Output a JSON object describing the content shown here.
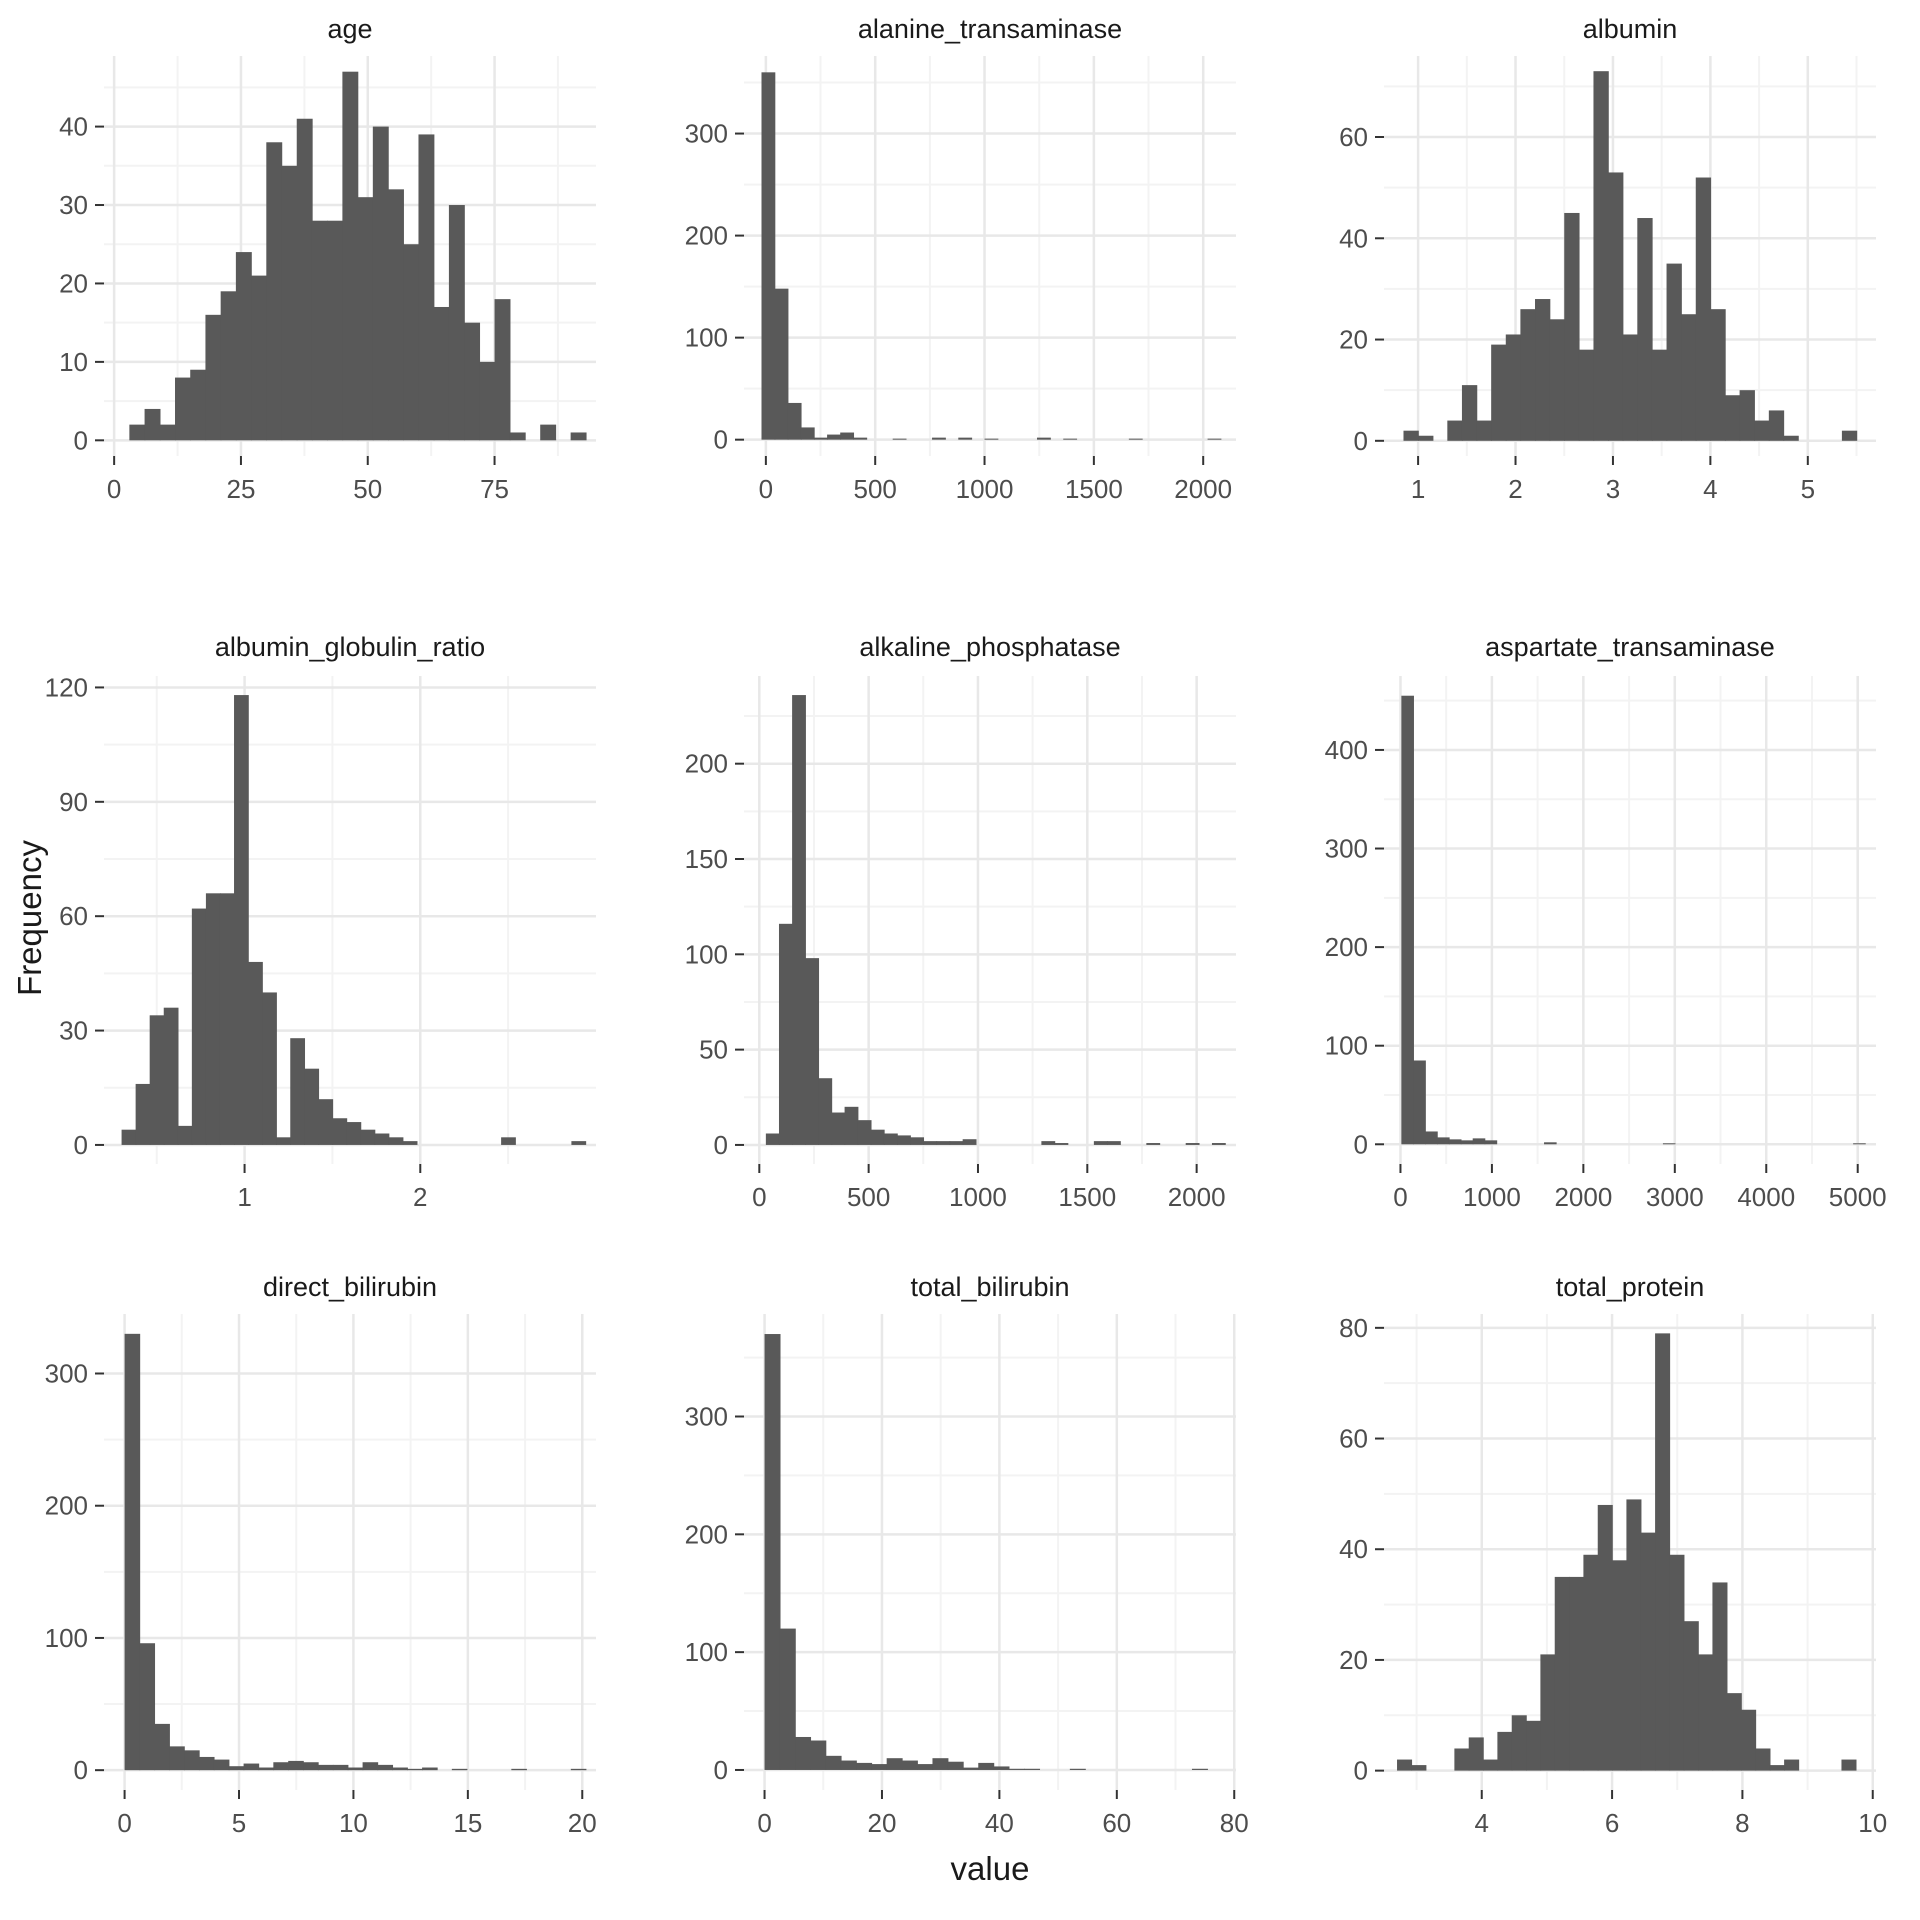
{
  "figure": {
    "ylabel": "Frequency",
    "xlabel": "value",
    "colors": {
      "bar": "#595959",
      "grid_major": "#e8e8e8",
      "grid_minor": "#f3f3f3",
      "tick_text": "#4d4d4d",
      "title_text": "#1a1a1a",
      "axis_tick": "#333333",
      "background": "#ffffff"
    }
  },
  "chart_data": [
    {
      "type": "histogram",
      "title": "age",
      "bin_start": 3,
      "bin_width": 3,
      "counts": [
        2,
        4,
        2,
        8,
        9,
        16,
        19,
        24,
        21,
        38,
        35,
        41,
        28,
        28,
        47,
        31,
        40,
        32,
        25,
        39,
        17,
        30,
        15,
        10,
        18,
        1,
        0,
        2,
        0,
        1
      ],
      "xticks": [
        0,
        25,
        50,
        75
      ],
      "yticks": [
        0,
        10,
        20,
        30,
        40
      ],
      "xlim": [
        -2,
        95
      ],
      "ylim": [
        -2,
        49
      ],
      "grid": true
    },
    {
      "type": "histogram",
      "title": "alanine_transaminase",
      "bin_start": -20,
      "bin_width": 60,
      "counts": [
        360,
        148,
        36,
        12,
        2,
        5,
        7,
        2,
        0,
        0,
        1,
        0,
        0,
        2,
        0,
        2,
        0,
        1,
        0,
        0,
        0,
        2,
        0,
        1,
        0,
        0,
        0,
        0,
        1,
        0,
        0,
        0,
        0,
        0,
        1
      ],
      "xticks": [
        0,
        500,
        1000,
        1500,
        2000
      ],
      "yticks": [
        0,
        100,
        200,
        300
      ],
      "xlim": [
        -100,
        2150
      ],
      "ylim": [
        -16,
        376
      ],
      "grid": true
    },
    {
      "type": "histogram",
      "title": "albumin",
      "bin_start": 0.85,
      "bin_width": 0.15,
      "counts": [
        2,
        1,
        0,
        4,
        11,
        4,
        19,
        21,
        26,
        28,
        24,
        45,
        18,
        73,
        53,
        21,
        44,
        18,
        35,
        25,
        52,
        26,
        9,
        10,
        4,
        6,
        1,
        0,
        0,
        0,
        2
      ],
      "xticks": [
        1,
        2,
        3,
        4,
        5
      ],
      "yticks": [
        0,
        20,
        40,
        60
      ],
      "xlim": [
        0.65,
        5.7
      ],
      "ylim": [
        -3,
        76
      ],
      "grid": true
    },
    {
      "type": "histogram",
      "title": "albumin_globulin_ratio",
      "bin_start": 0.3,
      "bin_width": 0.08,
      "counts": [
        4,
        16,
        34,
        36,
        5,
        62,
        66,
        66,
        118,
        48,
        40,
        2,
        28,
        20,
        12,
        7,
        6,
        4,
        3,
        2,
        1,
        0,
        0,
        0,
        0,
        0,
        0,
        2,
        0,
        0,
        0,
        0,
        1
      ],
      "xticks": [
        1,
        2
      ],
      "yticks": [
        0,
        30,
        60,
        90,
        120
      ],
      "xlim": [
        0.2,
        3.0
      ],
      "ylim": [
        -5,
        123
      ],
      "grid": true
    },
    {
      "type": "histogram",
      "title": "alkaline_phosphatase",
      "bin_start": 30,
      "bin_width": 60,
      "counts": [
        6,
        116,
        236,
        98,
        35,
        17,
        20,
        13,
        8,
        6,
        5,
        4,
        2,
        2,
        2,
        3,
        0,
        0,
        0,
        0,
        0,
        2,
        1,
        0,
        0,
        2,
        2,
        0,
        0,
        1,
        0,
        0,
        1,
        0,
        1
      ],
      "xticks": [
        0,
        500,
        1000,
        1500,
        2000
      ],
      "yticks": [
        0,
        50,
        100,
        150,
        200
      ],
      "xlim": [
        -70,
        2180
      ],
      "ylim": [
        -10,
        246
      ],
      "grid": true
    },
    {
      "type": "histogram",
      "title": "aspartate_transaminase",
      "bin_start": 10,
      "bin_width": 130,
      "counts": [
        455,
        85,
        13,
        7,
        5,
        4,
        6,
        4,
        0,
        0,
        0,
        0,
        2,
        0,
        0,
        0,
        0,
        0,
        0,
        0,
        0,
        0,
        1,
        0,
        0,
        0,
        0,
        0,
        0,
        0,
        0,
        0,
        0,
        0,
        0,
        0,
        0,
        0,
        1
      ],
      "xticks": [
        0,
        1000,
        2000,
        3000,
        4000,
        5000
      ],
      "yticks": [
        0,
        100,
        200,
        300,
        400
      ],
      "xlim": [
        -180,
        5200
      ],
      "ylim": [
        -20,
        475
      ],
      "grid": true
    },
    {
      "type": "histogram",
      "title": "direct_bilirubin",
      "bin_start": 0,
      "bin_width": 0.65,
      "counts": [
        330,
        96,
        35,
        18,
        15,
        10,
        8,
        3,
        5,
        2,
        6,
        7,
        6,
        4,
        4,
        2,
        6,
        4,
        2,
        1,
        2,
        0,
        1,
        0,
        0,
        0,
        1,
        0,
        0,
        0,
        1
      ],
      "xticks": [
        0,
        5,
        10,
        15,
        20
      ],
      "yticks": [
        0,
        100,
        200,
        300
      ],
      "xlim": [
        -0.9,
        20.6
      ],
      "ylim": [
        -15,
        345
      ],
      "grid": true
    },
    {
      "type": "histogram",
      "title": "total_bilirubin",
      "bin_start": 0,
      "bin_width": 2.6,
      "counts": [
        370,
        120,
        28,
        25,
        12,
        8,
        6,
        5,
        10,
        8,
        5,
        10,
        7,
        2,
        6,
        3,
        1,
        1,
        0,
        0,
        1,
        0,
        0,
        0,
        0,
        0,
        0,
        0,
        1
      ],
      "xticks": [
        0,
        20,
        40,
        60,
        80
      ],
      "yticks": [
        0,
        100,
        200,
        300
      ],
      "xlim": [
        -3.5,
        80.3
      ],
      "ylim": [
        -17,
        387
      ],
      "grid": true
    },
    {
      "type": "histogram",
      "title": "total_protein",
      "bin_start": 2.7,
      "bin_width": 0.22,
      "counts": [
        2,
        1,
        0,
        0,
        4,
        6,
        2,
        7,
        10,
        9,
        21,
        35,
        35,
        39,
        48,
        38,
        49,
        43,
        79,
        39,
        27,
        21,
        34,
        14,
        11,
        4,
        1,
        2,
        0,
        0,
        0,
        2
      ],
      "xticks": [
        4,
        6,
        8,
        10
      ],
      "yticks": [
        0,
        20,
        40,
        60,
        80
      ],
      "xlim": [
        2.5,
        10.05
      ],
      "ylim": [
        -3.5,
        82.5
      ],
      "grid": true
    }
  ]
}
